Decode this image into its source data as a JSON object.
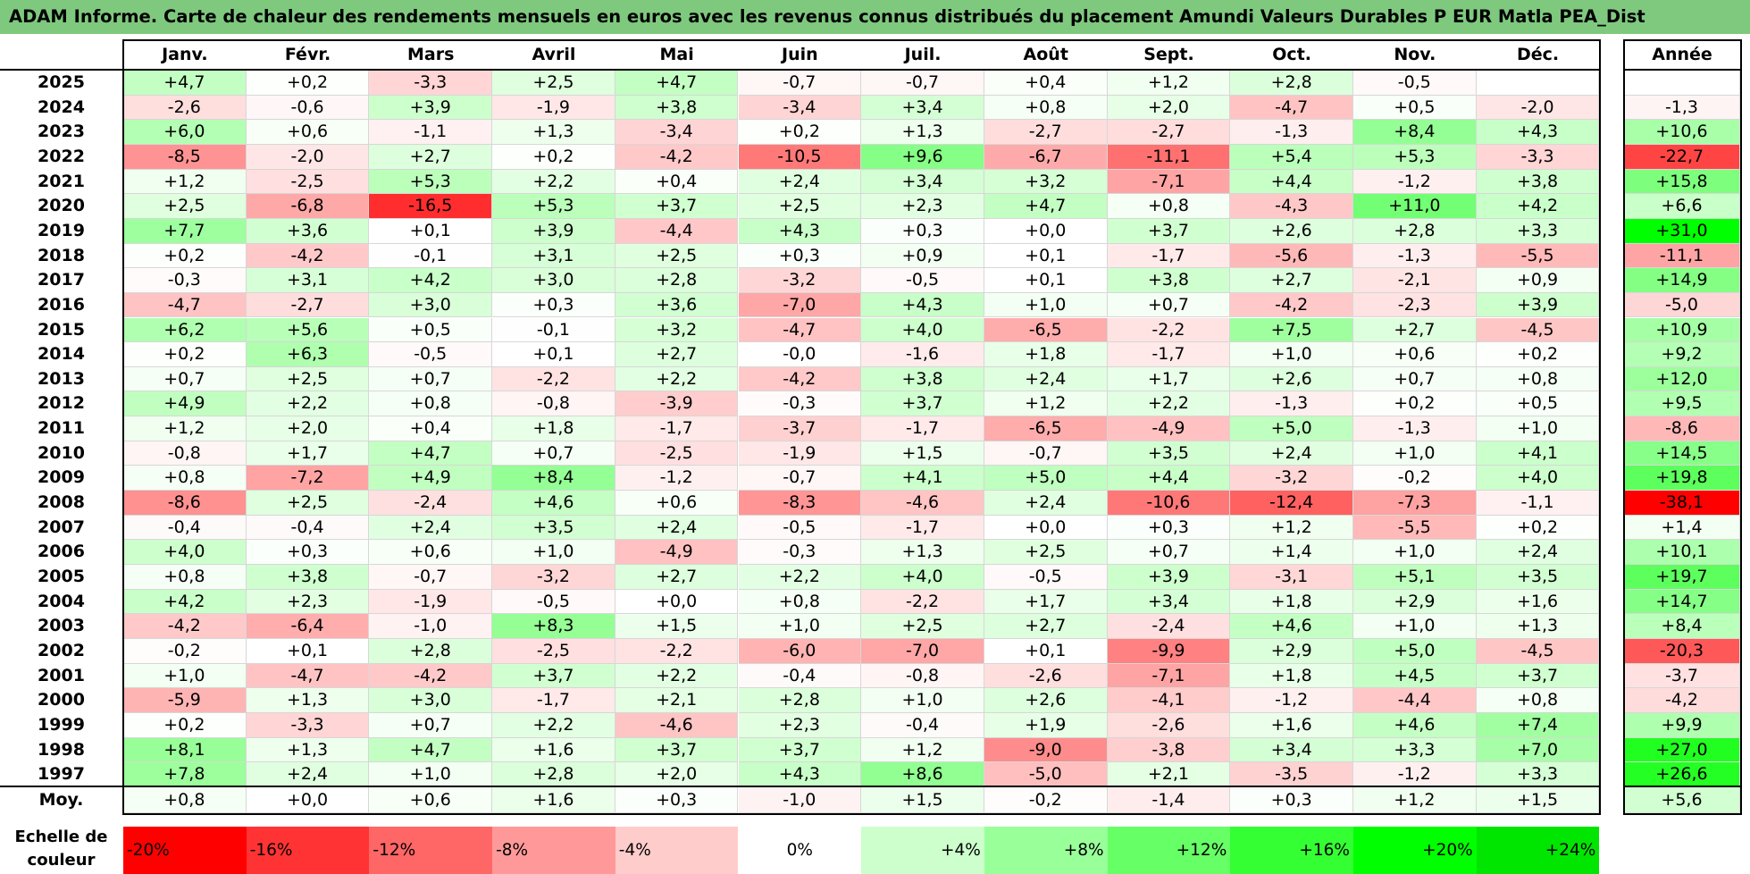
{
  "title": "ADAM Informe. Carte de chaleur des rendements mensuels en euros avec les revenus connus distribués du placement Amundi Valeurs Durables P EUR Matla PEA_Dist",
  "chart_data": {
    "type": "heatmap",
    "months": [
      "Janv.",
      "Févr.",
      "Mars",
      "Avril",
      "Mai",
      "Juin",
      "Juil.",
      "Août",
      "Sept.",
      "Oct.",
      "Nov.",
      "Déc."
    ],
    "year_header": "Année",
    "rows": [
      {
        "year": "2025",
        "values": [
          "+4,7",
          "+0,2",
          "-3,3",
          "+2,5",
          "+4,7",
          "-0,7",
          "-0,7",
          "+0,4",
          "+1,2",
          "+2,8",
          "-0,5",
          ""
        ],
        "annual": ""
      },
      {
        "year": "2024",
        "values": [
          "-2,6",
          "-0,6",
          "+3,9",
          "-1,9",
          "+3,8",
          "-3,4",
          "+3,4",
          "+0,8",
          "+2,0",
          "-4,7",
          "+0,5",
          "-2,0"
        ],
        "annual": "-1,3"
      },
      {
        "year": "2023",
        "values": [
          "+6,0",
          "+0,6",
          "-1,1",
          "+1,3",
          "-3,4",
          "+0,2",
          "+1,3",
          "-2,7",
          "-2,7",
          "-1,3",
          "+8,4",
          "+4,3"
        ],
        "annual": "+10,6"
      },
      {
        "year": "2022",
        "values": [
          "-8,5",
          "-2,0",
          "+2,7",
          "+0,2",
          "-4,2",
          "-10,5",
          "+9,6",
          "-6,7",
          "-11,1",
          "+5,4",
          "+5,3",
          "-3,3"
        ],
        "annual": "-22,7"
      },
      {
        "year": "2021",
        "values": [
          "+1,2",
          "-2,5",
          "+5,3",
          "+2,2",
          "+0,4",
          "+2,4",
          "+3,4",
          "+3,2",
          "-7,1",
          "+4,4",
          "-1,2",
          "+3,8"
        ],
        "annual": "+15,8"
      },
      {
        "year": "2020",
        "values": [
          "+2,5",
          "-6,8",
          "-16,5",
          "+5,3",
          "+3,7",
          "+2,5",
          "+2,3",
          "+4,7",
          "+0,8",
          "-4,3",
          "+11,0",
          "+4,2"
        ],
        "annual": "+6,6"
      },
      {
        "year": "2019",
        "values": [
          "+7,7",
          "+3,6",
          "+0,1",
          "+3,9",
          "-4,4",
          "+4,3",
          "+0,3",
          "+0,0",
          "+3,7",
          "+2,6",
          "+2,8",
          "+3,3"
        ],
        "annual": "+31,0"
      },
      {
        "year": "2018",
        "values": [
          "+0,2",
          "-4,2",
          "-0,1",
          "+3,1",
          "+2,5",
          "+0,3",
          "+0,9",
          "+0,1",
          "-1,7",
          "-5,6",
          "-1,3",
          "-5,5"
        ],
        "annual": "-11,1"
      },
      {
        "year": "2017",
        "values": [
          "-0,3",
          "+3,1",
          "+4,2",
          "+3,0",
          "+2,8",
          "-3,2",
          "-0,5",
          "+0,1",
          "+3,8",
          "+2,7",
          "-2,1",
          "+0,9"
        ],
        "annual": "+14,9"
      },
      {
        "year": "2016",
        "values": [
          "-4,7",
          "-2,7",
          "+3,0",
          "+0,3",
          "+3,6",
          "-7,0",
          "+4,3",
          "+1,0",
          "+0,7",
          "-4,2",
          "-2,3",
          "+3,9"
        ],
        "annual": "-5,0"
      },
      {
        "year": "2015",
        "values": [
          "+6,2",
          "+5,6",
          "+0,5",
          "-0,1",
          "+3,2",
          "-4,7",
          "+4,0",
          "-6,5",
          "-2,2",
          "+7,5",
          "+2,7",
          "-4,5"
        ],
        "annual": "+10,9"
      },
      {
        "year": "2014",
        "values": [
          "+0,2",
          "+6,3",
          "-0,5",
          "+0,1",
          "+2,7",
          "-0,0",
          "-1,6",
          "+1,8",
          "-1,7",
          "+1,0",
          "+0,6",
          "+0,2"
        ],
        "annual": "+9,2"
      },
      {
        "year": "2013",
        "values": [
          "+0,7",
          "+2,5",
          "+0,7",
          "-2,2",
          "+2,2",
          "-4,2",
          "+3,8",
          "+2,4",
          "+1,7",
          "+2,6",
          "+0,7",
          "+0,8"
        ],
        "annual": "+12,0"
      },
      {
        "year": "2012",
        "values": [
          "+4,9",
          "+2,2",
          "+0,8",
          "-0,8",
          "-3,9",
          "-0,3",
          "+3,7",
          "+1,2",
          "+2,2",
          "-1,3",
          "+0,2",
          "+0,5"
        ],
        "annual": "+9,5"
      },
      {
        "year": "2011",
        "values": [
          "+1,2",
          "+2,0",
          "+0,4",
          "+1,8",
          "-1,7",
          "-3,7",
          "-1,7",
          "-6,5",
          "-4,9",
          "+5,0",
          "-1,3",
          "+1,0"
        ],
        "annual": "-8,6"
      },
      {
        "year": "2010",
        "values": [
          "-0,8",
          "+1,7",
          "+4,7",
          "+0,7",
          "-2,5",
          "-1,9",
          "+1,5",
          "-0,7",
          "+3,5",
          "+2,4",
          "+1,0",
          "+4,1"
        ],
        "annual": "+14,5"
      },
      {
        "year": "2009",
        "values": [
          "+0,8",
          "-7,2",
          "+4,9",
          "+8,4",
          "-1,2",
          "-0,7",
          "+4,1",
          "+5,0",
          "+4,4",
          "-3,2",
          "-0,2",
          "+4,0"
        ],
        "annual": "+19,8"
      },
      {
        "year": "2008",
        "values": [
          "-8,6",
          "+2,5",
          "-2,4",
          "+4,6",
          "+0,6",
          "-8,3",
          "-4,6",
          "+2,4",
          "-10,6",
          "-12,4",
          "-7,3",
          "-1,1"
        ],
        "annual": "-38,1"
      },
      {
        "year": "2007",
        "values": [
          "-0,4",
          "-0,4",
          "+2,4",
          "+3,5",
          "+2,4",
          "-0,5",
          "-1,7",
          "+0,0",
          "+0,3",
          "+1,2",
          "-5,5",
          "+0,2"
        ],
        "annual": "+1,4"
      },
      {
        "year": "2006",
        "values": [
          "+4,0",
          "+0,3",
          "+0,6",
          "+1,0",
          "-4,9",
          "-0,3",
          "+1,3",
          "+2,5",
          "+0,7",
          "+1,4",
          "+1,0",
          "+2,4"
        ],
        "annual": "+10,1"
      },
      {
        "year": "2005",
        "values": [
          "+0,8",
          "+3,8",
          "-0,7",
          "-3,2",
          "+2,7",
          "+2,2",
          "+4,0",
          "-0,5",
          "+3,9",
          "-3,1",
          "+5,1",
          "+3,5"
        ],
        "annual": "+19,7"
      },
      {
        "year": "2004",
        "values": [
          "+4,2",
          "+2,3",
          "-1,9",
          "-0,5",
          "+0,0",
          "+0,8",
          "-2,2",
          "+1,7",
          "+3,4",
          "+1,8",
          "+2,9",
          "+1,6"
        ],
        "annual": "+14,7"
      },
      {
        "year": "2003",
        "values": [
          "-4,2",
          "-6,4",
          "-1,0",
          "+8,3",
          "+1,5",
          "+1,0",
          "+2,5",
          "+2,7",
          "-2,4",
          "+4,6",
          "+1,0",
          "+1,3"
        ],
        "annual": "+8,4"
      },
      {
        "year": "2002",
        "values": [
          "-0,2",
          "+0,1",
          "+2,8",
          "-2,5",
          "-2,2",
          "-6,0",
          "-7,0",
          "+0,1",
          "-9,9",
          "+2,9",
          "+5,0",
          "-4,5"
        ],
        "annual": "-20,3"
      },
      {
        "year": "2001",
        "values": [
          "+1,0",
          "-4,7",
          "-4,2",
          "+3,7",
          "+2,2",
          "-0,4",
          "-0,8",
          "-2,6",
          "-7,1",
          "+1,8",
          "+4,5",
          "+3,7"
        ],
        "annual": "-3,7"
      },
      {
        "year": "2000",
        "values": [
          "-5,9",
          "+1,3",
          "+3,0",
          "-1,7",
          "+2,1",
          "+2,8",
          "+1,0",
          "+2,6",
          "-4,1",
          "-1,2",
          "-4,4",
          "+0,8"
        ],
        "annual": "-4,2"
      },
      {
        "year": "1999",
        "values": [
          "+0,2",
          "-3,3",
          "+0,7",
          "+2,2",
          "-4,6",
          "+2,3",
          "-0,4",
          "+1,9",
          "-2,6",
          "+1,6",
          "+4,6",
          "+7,4"
        ],
        "annual": "+9,9"
      },
      {
        "year": "1998",
        "values": [
          "+8,1",
          "+1,3",
          "+4,7",
          "+1,6",
          "+3,7",
          "+3,7",
          "+1,2",
          "-9,0",
          "-3,8",
          "+3,4",
          "+3,3",
          "+7,0"
        ],
        "annual": "+27,0"
      },
      {
        "year": "1997",
        "values": [
          "+7,8",
          "+2,4",
          "+1,0",
          "+2,8",
          "+2,0",
          "+4,3",
          "+8,6",
          "-5,0",
          "+2,1",
          "-3,5",
          "-1,2",
          "+3,3"
        ],
        "annual": "+26,6"
      }
    ],
    "average": {
      "label": "Moy.",
      "values": [
        "+0,8",
        "+0,0",
        "+0,6",
        "+1,6",
        "+0,3",
        "-1,0",
        "+1,5",
        "-0,2",
        "-1,4",
        "+0,3",
        "+1,2",
        "+1,5"
      ],
      "annual": "+5,6"
    },
    "scale": {
      "label_line1": "Echelle de",
      "label_line2": "couleur",
      "items": [
        {
          "label": "-20%",
          "value": -20,
          "color": "#ff0000"
        },
        {
          "label": "-16%",
          "value": -16,
          "color": "#ff3333"
        },
        {
          "label": "-12%",
          "value": -12,
          "color": "#ff6666"
        },
        {
          "label": "-8%",
          "value": -8,
          "color": "#ff9999"
        },
        {
          "label": "-4%",
          "value": -4,
          "color": "#ffcccc"
        },
        {
          "label": "0%",
          "value": 0,
          "color": "#ffffff"
        },
        {
          "label": "+4%",
          "value": 4,
          "color": "#ccffcc"
        },
        {
          "label": "+8%",
          "value": 8,
          "color": "#99ff99"
        },
        {
          "label": "+12%",
          "value": 12,
          "color": "#66ff66"
        },
        {
          "label": "+16%",
          "value": 16,
          "color": "#33ff33"
        },
        {
          "label": "+20%",
          "value": 20,
          "color": "#00ff00"
        },
        {
          "label": "+24%",
          "value": 24,
          "color": "#00e600"
        }
      ]
    },
    "colors": {
      "title_bg": "#7fc97f",
      "negative": "#ff0000",
      "positive": "#00ff00",
      "neutral": "#ffffff"
    }
  }
}
